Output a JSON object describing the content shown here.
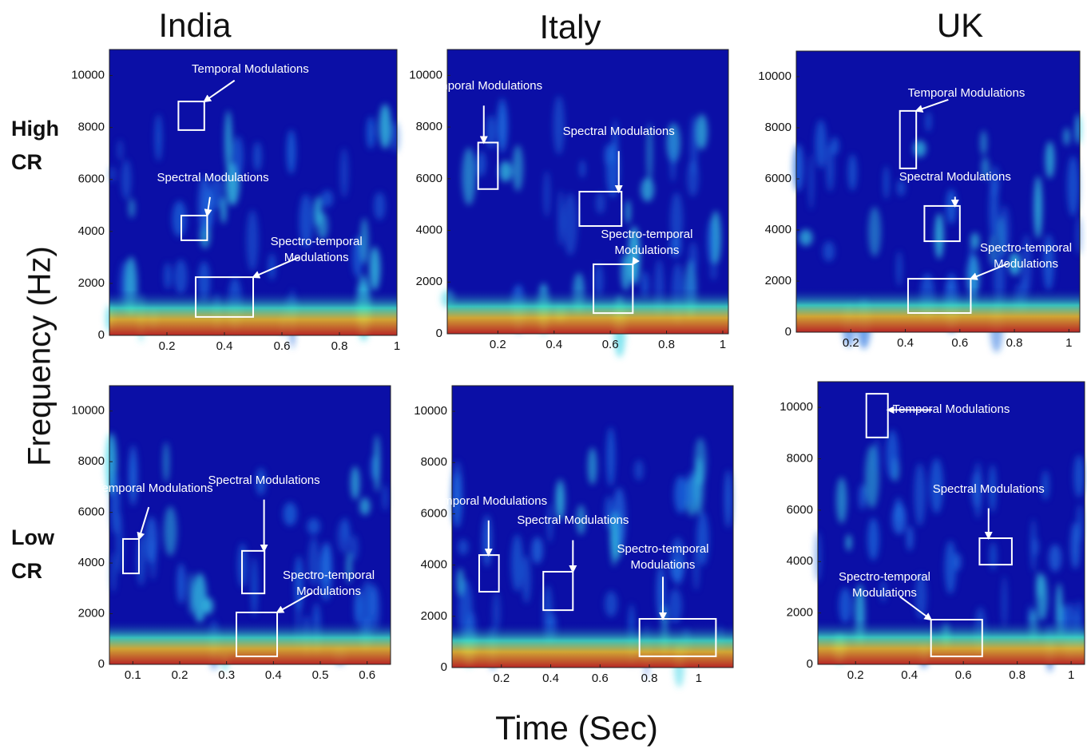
{
  "figure": {
    "columns": [
      "India",
      "Italy",
      "UK"
    ],
    "rows": [
      "High CR",
      "Low CR"
    ],
    "ylabel": "Frequency (Hz)",
    "xlabel": "Time (Sec)"
  },
  "chart_data": [
    {
      "type": "spectrogram",
      "xlim": [
        0,
        1
      ],
      "ylim": [
        0,
        11000
      ],
      "xticks": [
        0.2,
        0.4,
        0.6,
        0.8,
        1
      ],
      "yticks": [
        0,
        2000,
        4000,
        6000,
        8000,
        10000
      ],
      "annotations": [
        {
          "text": "Temporal Modulations",
          "region": {
            "x": [
              0.24,
              0.33
            ],
            "y": [
              7900,
              9000
            ]
          }
        },
        {
          "text": "Spectral Modulations",
          "region": {
            "x": [
              0.25,
              0.34
            ],
            "y": [
              3660,
              4610
            ]
          }
        },
        {
          "text": "Spectro-temporal Modulations",
          "region": {
            "x": [
              0.3,
              0.5
            ],
            "y": [
              710,
              2240
            ]
          }
        }
      ]
    },
    {
      "type": "spectrogram",
      "xlim": [
        0.02,
        1.02
      ],
      "ylim": [
        0,
        11000
      ],
      "xticks": [
        0.2,
        0.4,
        0.6,
        0.8,
        1
      ],
      "yticks": [
        0,
        2000,
        4000,
        6000,
        8000,
        10000
      ],
      "annotations": [
        {
          "text": "Temporal Modulations",
          "region": {
            "x": [
              0.13,
              0.2
            ],
            "y": [
              5600,
              7400
            ]
          }
        },
        {
          "text": "Spectral Modulations",
          "region": {
            "x": [
              0.49,
              0.64
            ],
            "y": [
              4170,
              5500
            ]
          }
        },
        {
          "text": "Spectro-temporal Modulations",
          "region": {
            "x": [
              0.54,
              0.68
            ],
            "y": [
              800,
              2690
            ]
          }
        }
      ]
    },
    {
      "type": "spectrogram",
      "xlim": [
        0,
        1.04
      ],
      "ylim": [
        0,
        11000
      ],
      "xticks": [
        0.2,
        0.4,
        0.6,
        0.8,
        1
      ],
      "yticks": [
        0,
        2000,
        4000,
        6000,
        8000,
        10000
      ],
      "annotations": [
        {
          "text": "Temporal Modulations",
          "region": {
            "x": [
              0.38,
              0.44
            ],
            "y": [
              6410,
              8660
            ]
          }
        },
        {
          "text": "Spectral Modulations",
          "region": {
            "x": [
              0.47,
              0.6
            ],
            "y": [
              3560,
              4940
            ]
          }
        },
        {
          "text": "Spectro-temporal Modulations",
          "region": {
            "x": [
              0.41,
              0.64
            ],
            "y": [
              750,
              2090
            ]
          }
        }
      ]
    },
    {
      "type": "spectrogram",
      "xlim": [
        0.05,
        0.65
      ],
      "ylim": [
        0,
        11000
      ],
      "xticks": [
        0.1,
        0.2,
        0.3,
        0.4,
        0.5,
        0.6
      ],
      "yticks": [
        0,
        2000,
        4000,
        6000,
        8000,
        10000
      ],
      "annotations": [
        {
          "text": "Temporal Modulations",
          "region": {
            "x": [
              0.079,
              0.113
            ],
            "y": [
              3590,
              4950
            ]
          }
        },
        {
          "text": "Spectral Modulations",
          "region": {
            "x": [
              0.333,
              0.381
            ],
            "y": [
              2800,
              4480
            ]
          }
        },
        {
          "text": "Spectro-temporal Modulations",
          "region": {
            "x": [
              0.321,
              0.408
            ],
            "y": [
              315,
              2050
            ]
          }
        }
      ]
    },
    {
      "type": "spectrogram",
      "xlim": [
        0,
        1.14
      ],
      "ylim": [
        0,
        11000
      ],
      "xticks": [
        0.2,
        0.4,
        0.6,
        0.8,
        1
      ],
      "yticks": [
        0,
        2000,
        4000,
        6000,
        8000,
        10000
      ],
      "annotations": [
        {
          "text": "Temporal Modulations",
          "region": {
            "x": [
              0.11,
              0.19
            ],
            "y": [
              2960,
              4390
            ]
          }
        },
        {
          "text": "Spectral Modulations",
          "region": {
            "x": [
              0.37,
              0.49
            ],
            "y": [
              2240,
              3740
            ]
          }
        },
        {
          "text": "Spectro-temporal Modulations",
          "region": {
            "x": [
              0.76,
              1.07
            ],
            "y": [
              440,
              1900
            ]
          }
        }
      ]
    },
    {
      "type": "spectrogram",
      "xlim": [
        0.06,
        1.05
      ],
      "ylim": [
        0,
        11000
      ],
      "xticks": [
        0.2,
        0.4,
        0.6,
        0.8,
        1
      ],
      "yticks": [
        0,
        2000,
        4000,
        6000,
        8000,
        10000
      ],
      "annotations": [
        {
          "text": "Temporal Modulations",
          "region": {
            "x": [
              0.24,
              0.32
            ],
            "y": [
              8830,
              10530
            ]
          }
        },
        {
          "text": "Spectral Modulations",
          "region": {
            "x": [
              0.66,
              0.78
            ],
            "y": [
              3880,
              4910
            ]
          }
        },
        {
          "text": "Spectro-temporal Modulations",
          "region": {
            "x": [
              0.48,
              0.67
            ],
            "y": [
              310,
              1740
            ]
          }
        }
      ]
    }
  ]
}
